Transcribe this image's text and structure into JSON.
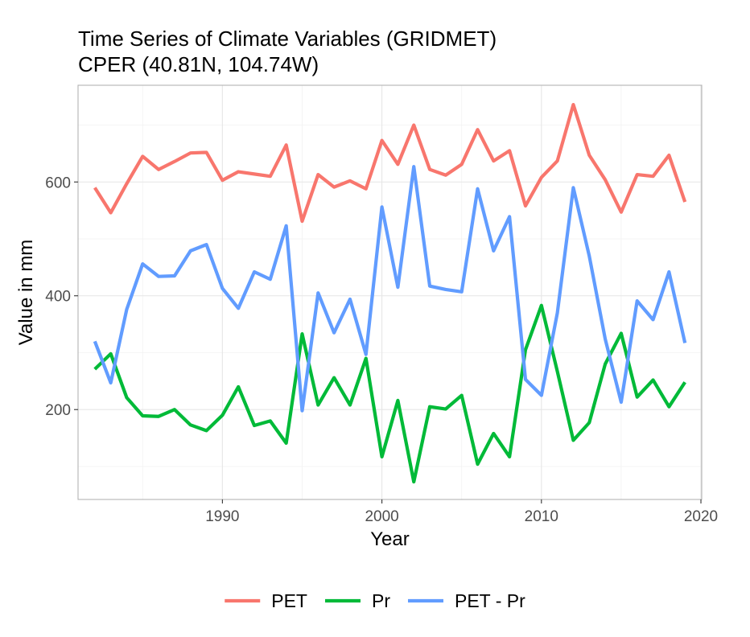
{
  "chart_data": {
    "type": "line",
    "title": "Time Series of Climate Variables (GRIDMET)",
    "subtitle": "CPER (40.81N, 104.74W)",
    "xlabel": "Year",
    "ylabel": "Value in mm",
    "xlim": [
      1980.95,
      2020.05
    ],
    "ylim": [
      42,
      770
    ],
    "x_ticks": [
      1990,
      2000,
      2010,
      2020
    ],
    "x_tick_labels": [
      "1990",
      "2000",
      "2010",
      "2020"
    ],
    "y_ticks": [
      200,
      400,
      600
    ],
    "y_tick_labels": [
      "200",
      "400",
      "600"
    ],
    "x_minor_ticks": [
      1985,
      1995,
      2005,
      2015
    ],
    "y_minor_ticks": [
      100,
      300,
      500,
      700
    ],
    "grid": true,
    "legend_position": "bottom",
    "x": [
      1982,
      1983,
      1984,
      1985,
      1986,
      1987,
      1988,
      1989,
      1990,
      1991,
      1992,
      1993,
      1994,
      1995,
      1996,
      1997,
      1998,
      1999,
      2000,
      2001,
      2002,
      2003,
      2004,
      2005,
      2006,
      2007,
      2008,
      2009,
      2010,
      2011,
      2012,
      2013,
      2014,
      2015,
      2016,
      2017,
      2018,
      2019
    ],
    "series": [
      {
        "name": "PET",
        "color": "#F8766D",
        "values": [
          590,
          546,
          597,
          645,
          622,
          636,
          651,
          652,
          603,
          618,
          614,
          610,
          665,
          531,
          613,
          591,
          602,
          588,
          673,
          631,
          700,
          622,
          612,
          631,
          692,
          637,
          655,
          558,
          608,
          637,
          736,
          647,
          604,
          547,
          613,
          610,
          647,
          565
        ]
      },
      {
        "name": "Pr",
        "color": "#00BA38",
        "values": [
          271,
          298,
          221,
          189,
          188,
          200,
          173,
          163,
          190,
          240,
          172,
          180,
          141,
          333,
          208,
          256,
          208,
          290,
          117,
          216,
          73,
          205,
          201,
          225,
          104,
          158,
          117,
          305,
          383,
          267,
          146,
          177,
          280,
          334,
          222,
          252,
          205,
          248
        ]
      },
      {
        "name": "PET - Pr",
        "color": "#619CFF",
        "values": [
          320,
          247,
          376,
          456,
          434,
          435,
          479,
          490,
          413,
          378,
          442,
          429,
          523,
          198,
          405,
          335,
          394,
          297,
          556,
          415,
          627,
          417,
          411,
          407,
          588,
          479,
          539,
          253,
          225,
          370,
          590,
          470,
          324,
          213,
          391,
          358,
          442,
          317
        ]
      }
    ]
  }
}
